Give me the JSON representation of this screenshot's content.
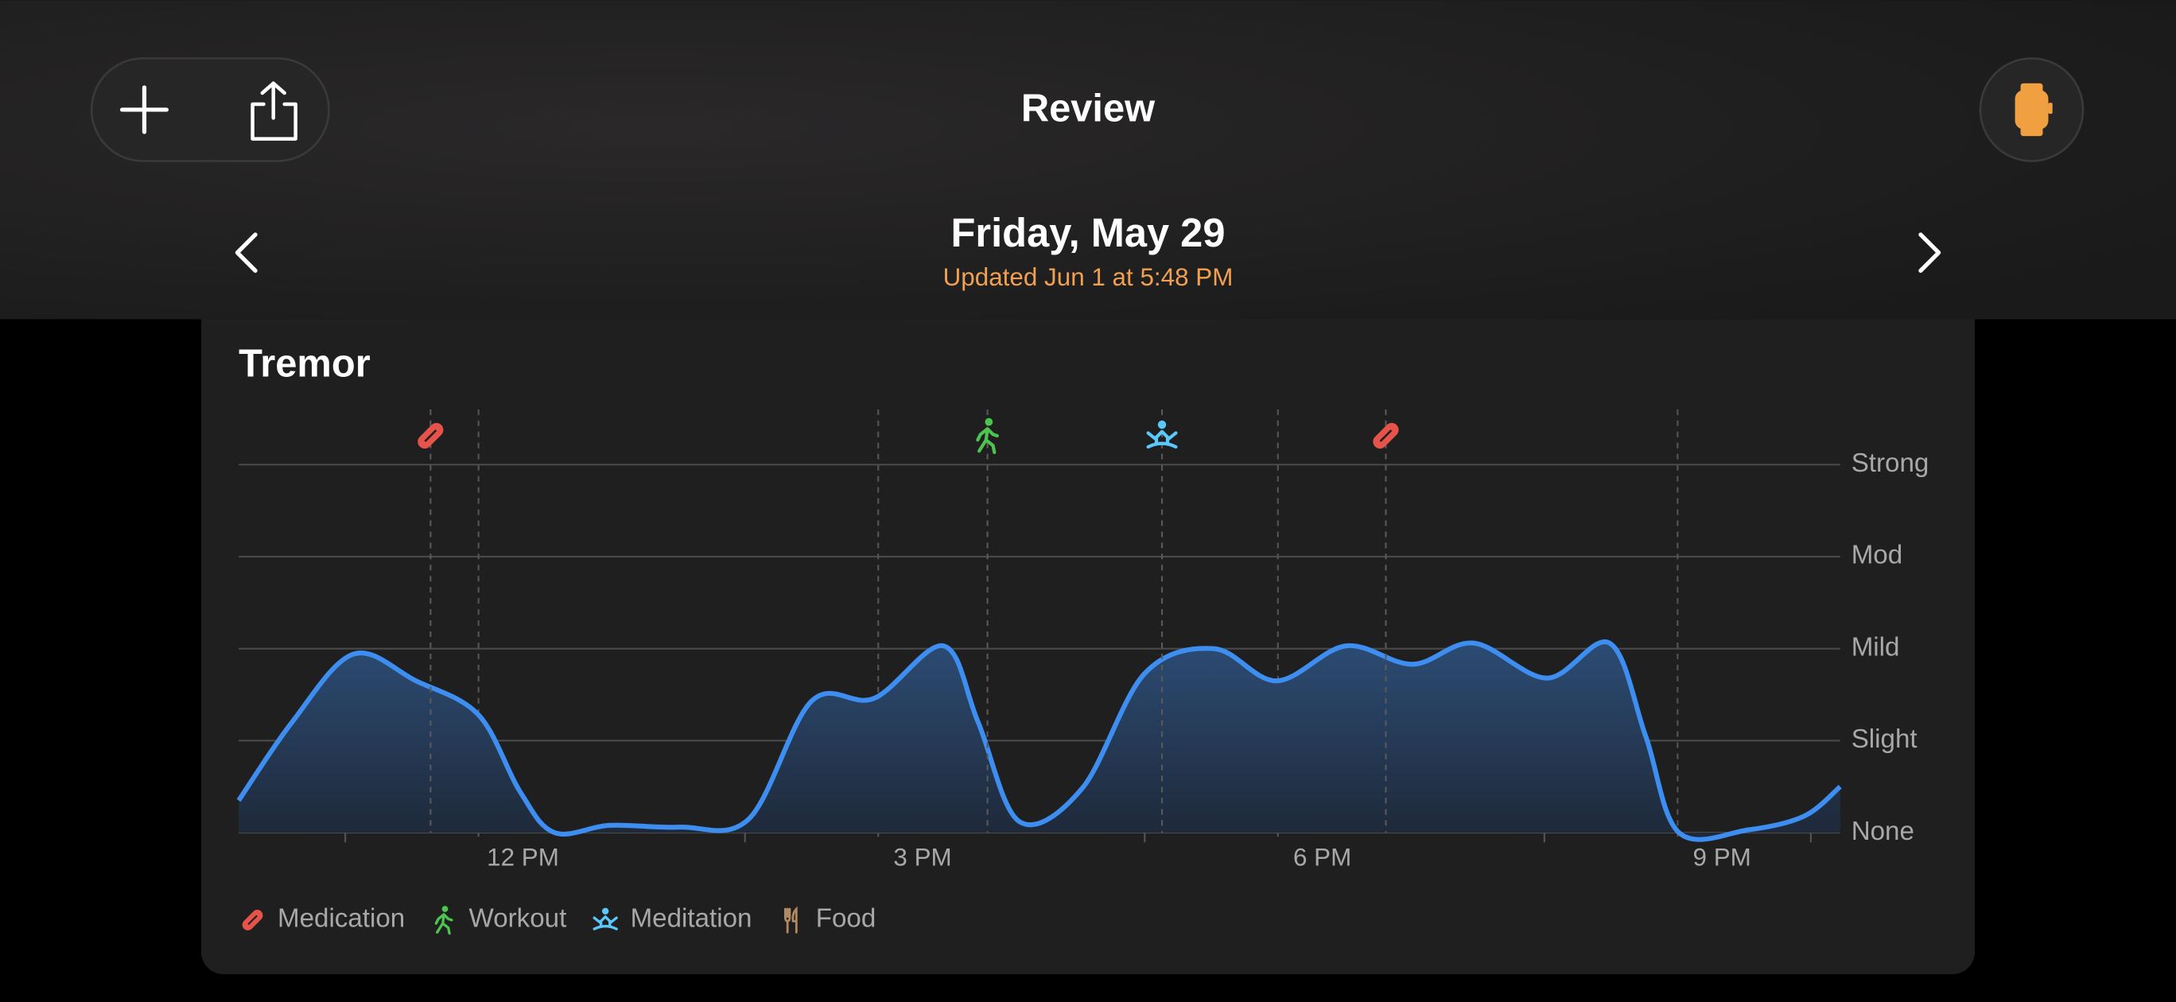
{
  "header": {
    "title": "Review"
  },
  "date": {
    "title": "Friday, May 29",
    "subtitle": "Updated Jun 1 at 5:48 PM"
  },
  "chart_data": {
    "type": "area",
    "title": "Tremor",
    "color": "#3d8ef0",
    "x": [
      10.2,
      10.6,
      11.06,
      11.53,
      12.0,
      12.31,
      12.57,
      12.99,
      13.51,
      14.03,
      14.5,
      14.97,
      15.49,
      15.75,
      16.06,
      16.53,
      17.0,
      17.52,
      17.99,
      18.51,
      19.01,
      19.47,
      20.02,
      20.49,
      20.76,
      21.01,
      21.53,
      21.95,
      22.22
    ],
    "values": [
      0.35,
      1.2,
      1.94,
      1.65,
      1.28,
      0.45,
      0,
      0.08,
      0.06,
      0.15,
      1.43,
      1.46,
      2.03,
      1.2,
      0.12,
      0.48,
      1.73,
      2.0,
      1.65,
      2.03,
      1.83,
      2.06,
      1.68,
      2.06,
      1.05,
      0,
      0.03,
      0.18,
      0.5
    ],
    "xlim": [
      10.2,
      22.22
    ],
    "xticks": [
      {
        "value": 12,
        "label": "12 PM"
      },
      {
        "value": 15,
        "label": "3 PM"
      },
      {
        "value": 18,
        "label": "6 PM"
      },
      {
        "value": 21,
        "label": "9 PM"
      }
    ],
    "xminorticks": [
      11,
      14,
      17,
      20,
      22
    ],
    "ylim": [
      0,
      4.6
    ],
    "yticks": [
      {
        "value": 0,
        "label": "None"
      },
      {
        "value": 1,
        "label": "Slight"
      },
      {
        "value": 2,
        "label": "Mild"
      },
      {
        "value": 3,
        "label": "Mod"
      },
      {
        "value": 4,
        "label": "Strong"
      }
    ],
    "grid": true,
    "legend": [
      {
        "name": "Medication",
        "color": "#e5534b"
      },
      {
        "name": "Workout",
        "color": "#4cc44f"
      },
      {
        "name": "Meditation",
        "color": "#5ac8fa"
      },
      {
        "name": "Food",
        "color": "#b08a60"
      }
    ],
    "events": [
      {
        "kind": 0,
        "x": 11.64
      },
      {
        "kind": 1,
        "x": 15.82
      },
      {
        "kind": 2,
        "x": 17.13
      },
      {
        "kind": 0,
        "x": 18.81
      }
    ]
  }
}
